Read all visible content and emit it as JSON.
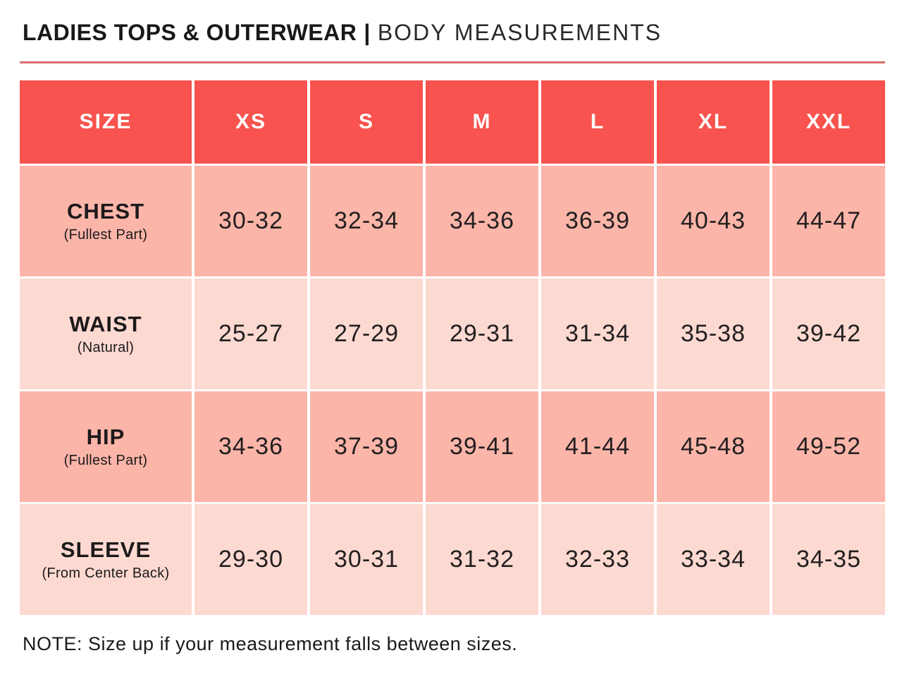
{
  "title": {
    "bold": "LADIES TOPS & OUTERWEAR",
    "separator": "|",
    "light": "BODY MEASUREMENTS"
  },
  "chart_data": {
    "type": "table",
    "title": "LADIES TOPS & OUTERWEAR | BODY MEASUREMENTS",
    "columns": [
      "SIZE",
      "XS",
      "S",
      "M",
      "L",
      "XL",
      "XXL"
    ],
    "rows": [
      {
        "label": "CHEST",
        "sublabel": "(Fullest Part)",
        "values": [
          "30-32",
          "32-34",
          "34-36",
          "36-39",
          "40-43",
          "44-47"
        ]
      },
      {
        "label": "WAIST",
        "sublabel": "(Natural)",
        "values": [
          "25-27",
          "27-29",
          "29-31",
          "31-34",
          "35-38",
          "39-42"
        ]
      },
      {
        "label": "HIP",
        "sublabel": "(Fullest Part)",
        "values": [
          "34-36",
          "37-39",
          "39-41",
          "41-44",
          "45-48",
          "49-52"
        ]
      },
      {
        "label": "SLEEVE",
        "sublabel": "(From Center Back)",
        "values": [
          "29-30",
          "30-31",
          "31-32",
          "32-33",
          "33-34",
          "34-35"
        ]
      }
    ]
  },
  "note": "NOTE: Size up if your measurement falls between sizes.",
  "colors": {
    "header_bg": "#f8534e",
    "header_text": "#ffffff",
    "row_dark": "#fbb5a9",
    "row_light": "#fcd9d1",
    "rule": "#d9706c",
    "body_text": "#231f20"
  }
}
